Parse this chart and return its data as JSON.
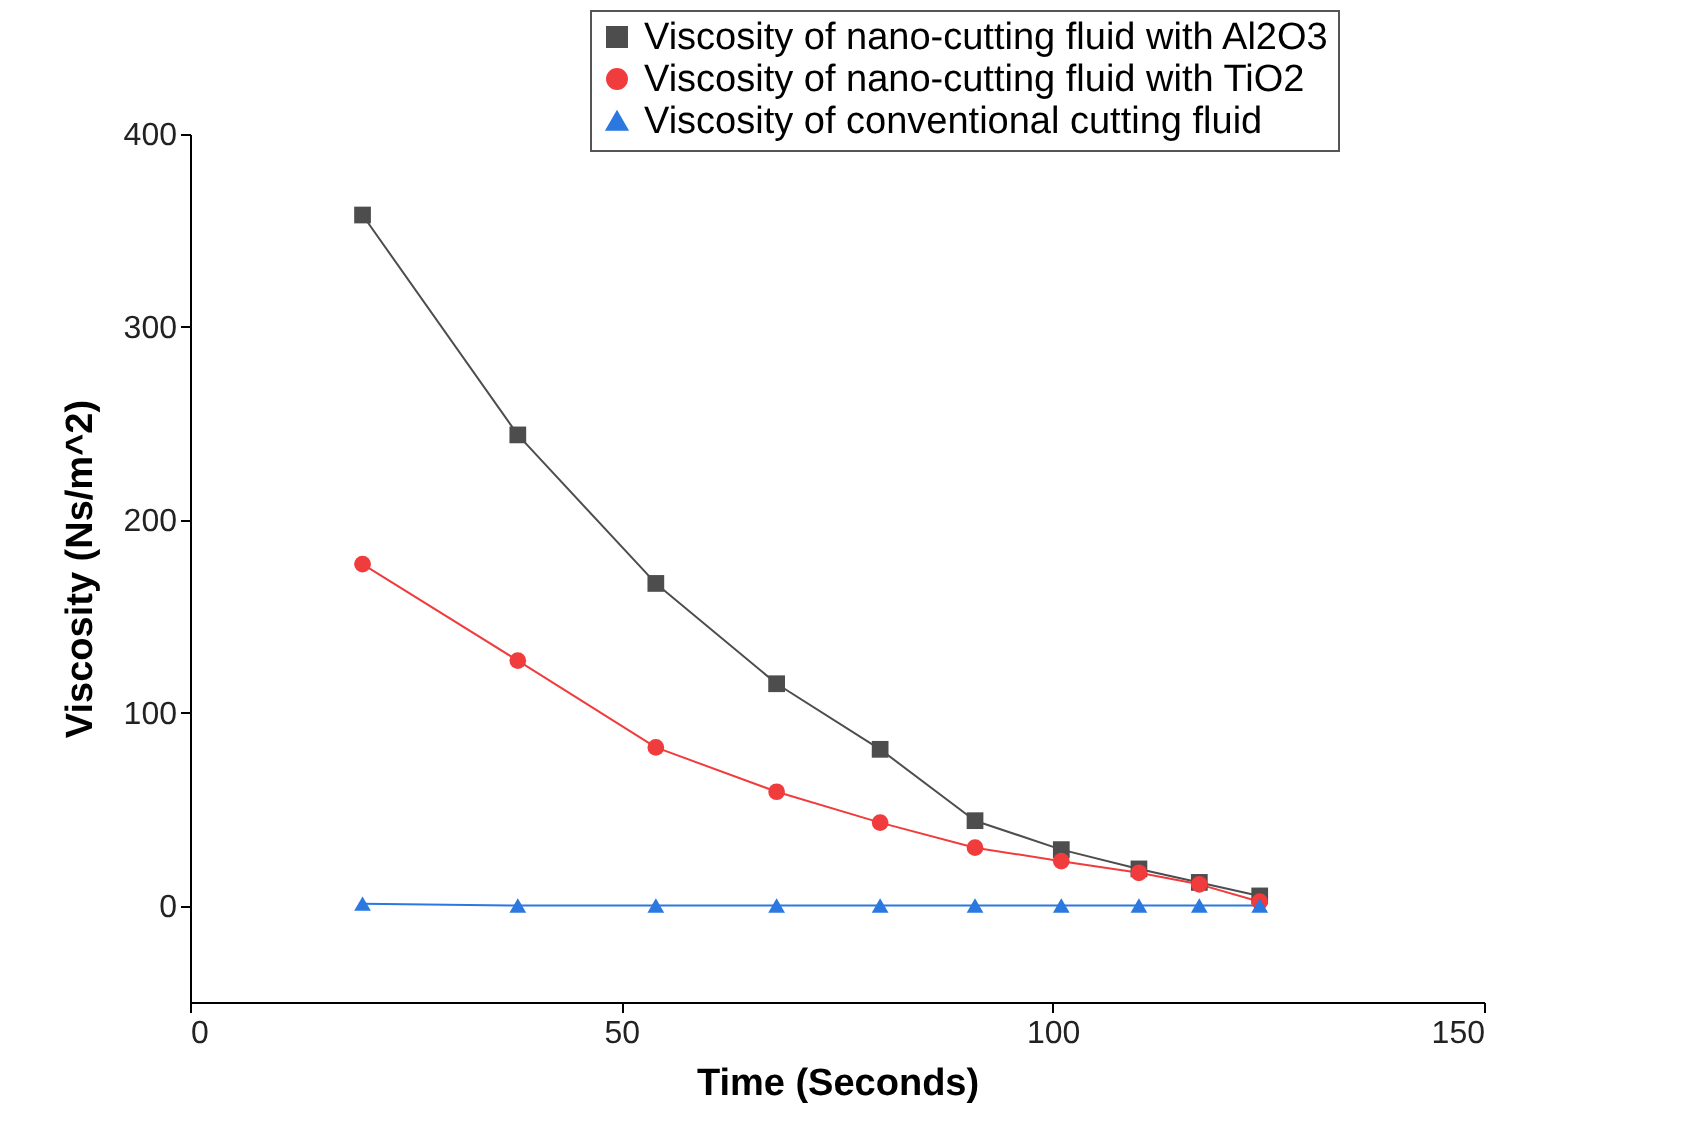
{
  "chart_data": {
    "type": "line",
    "xlabel": "Time (Seconds)",
    "ylabel": "Viscosity (Ns/m^2)",
    "x": [
      20,
      38,
      54,
      68,
      80,
      91,
      101,
      110,
      117,
      124
    ],
    "series": [
      {
        "name": "Viscosity of nano-cutting fluid with Al2O3",
        "color": "#4d4d4d",
        "marker": "square",
        "values": [
          358,
          244,
          167,
          115,
          81,
          44,
          29,
          19,
          12,
          5
        ]
      },
      {
        "name": "Viscosity of nano-cutting fluid with TiO2",
        "color": "#f03c3c",
        "marker": "circle",
        "values": [
          177,
          127,
          82,
          59,
          43,
          30,
          23,
          17,
          11,
          2
        ]
      },
      {
        "name": "Viscosity of conventional cutting fluid",
        "color": "#2a78e0",
        "marker": "triangle",
        "values": [
          1,
          0,
          0,
          0,
          0,
          0,
          0,
          0,
          0,
          0
        ]
      }
    ],
    "xlim": [
      0,
      150
    ],
    "xticks": [
      0,
      50,
      100,
      150
    ],
    "ylim": [
      -50,
      400
    ],
    "yticks": [
      0,
      100,
      200,
      300,
      400
    ],
    "grid": false,
    "legend": "top right",
    "line_style": "solid"
  }
}
